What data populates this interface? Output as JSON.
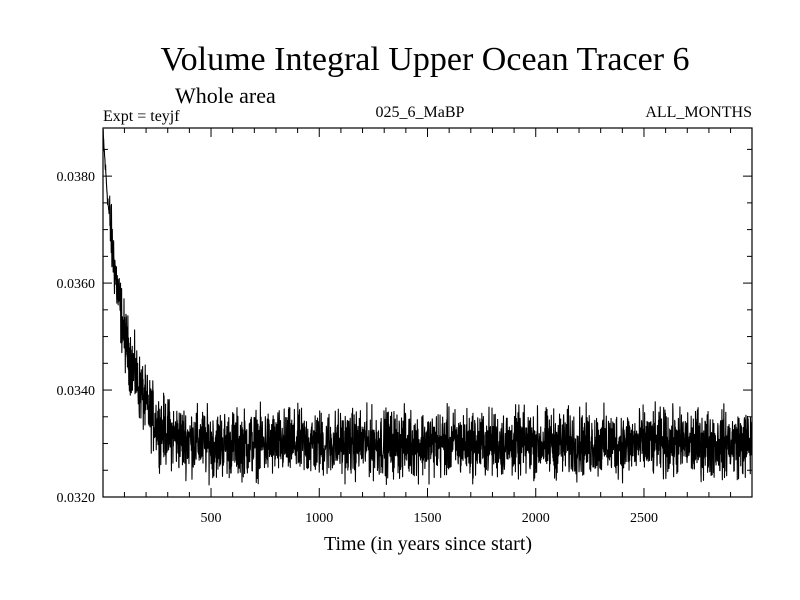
{
  "chart_data": {
    "type": "line",
    "title": "Volume Integral Upper Ocean Tracer 6",
    "subtitle": "Whole area",
    "info_left": "Expt = teyjf",
    "info_center": "025_6_MaBP",
    "info_right": "ALL_MONTHS",
    "xlabel": "Time (in years since start)",
    "ylabel": "",
    "xlim": [
      1,
      2999
    ],
    "ylim": [
      0.032,
      0.0389
    ],
    "xticks": [
      500,
      1000,
      1500,
      2000,
      2500
    ],
    "xtick_labels": [
      "500",
      "1000",
      "1500",
      "2000",
      "2500"
    ],
    "yticks": [
      0.032,
      0.034,
      0.036,
      0.038
    ],
    "ytick_labels": [
      "0.0320",
      "0.0340",
      "0.0360",
      "0.0380"
    ],
    "grid": false,
    "series": [
      {
        "color": "#000000",
        "trend": [
          [
            1,
            0.0388
          ],
          [
            20,
            0.0377
          ],
          [
            40,
            0.0368
          ],
          [
            70,
            0.0358
          ],
          [
            100,
            0.035
          ],
          [
            140,
            0.0344
          ],
          [
            200,
            0.0337
          ],
          [
            260,
            0.0333
          ],
          [
            350,
            0.0331
          ],
          [
            500,
            0.033
          ],
          [
            1000,
            0.033
          ],
          [
            1500,
            0.033
          ],
          [
            2000,
            0.033
          ],
          [
            2500,
            0.033
          ],
          [
            2999,
            0.033
          ]
        ],
        "noise_amplitude": 0.0006
      }
    ]
  }
}
